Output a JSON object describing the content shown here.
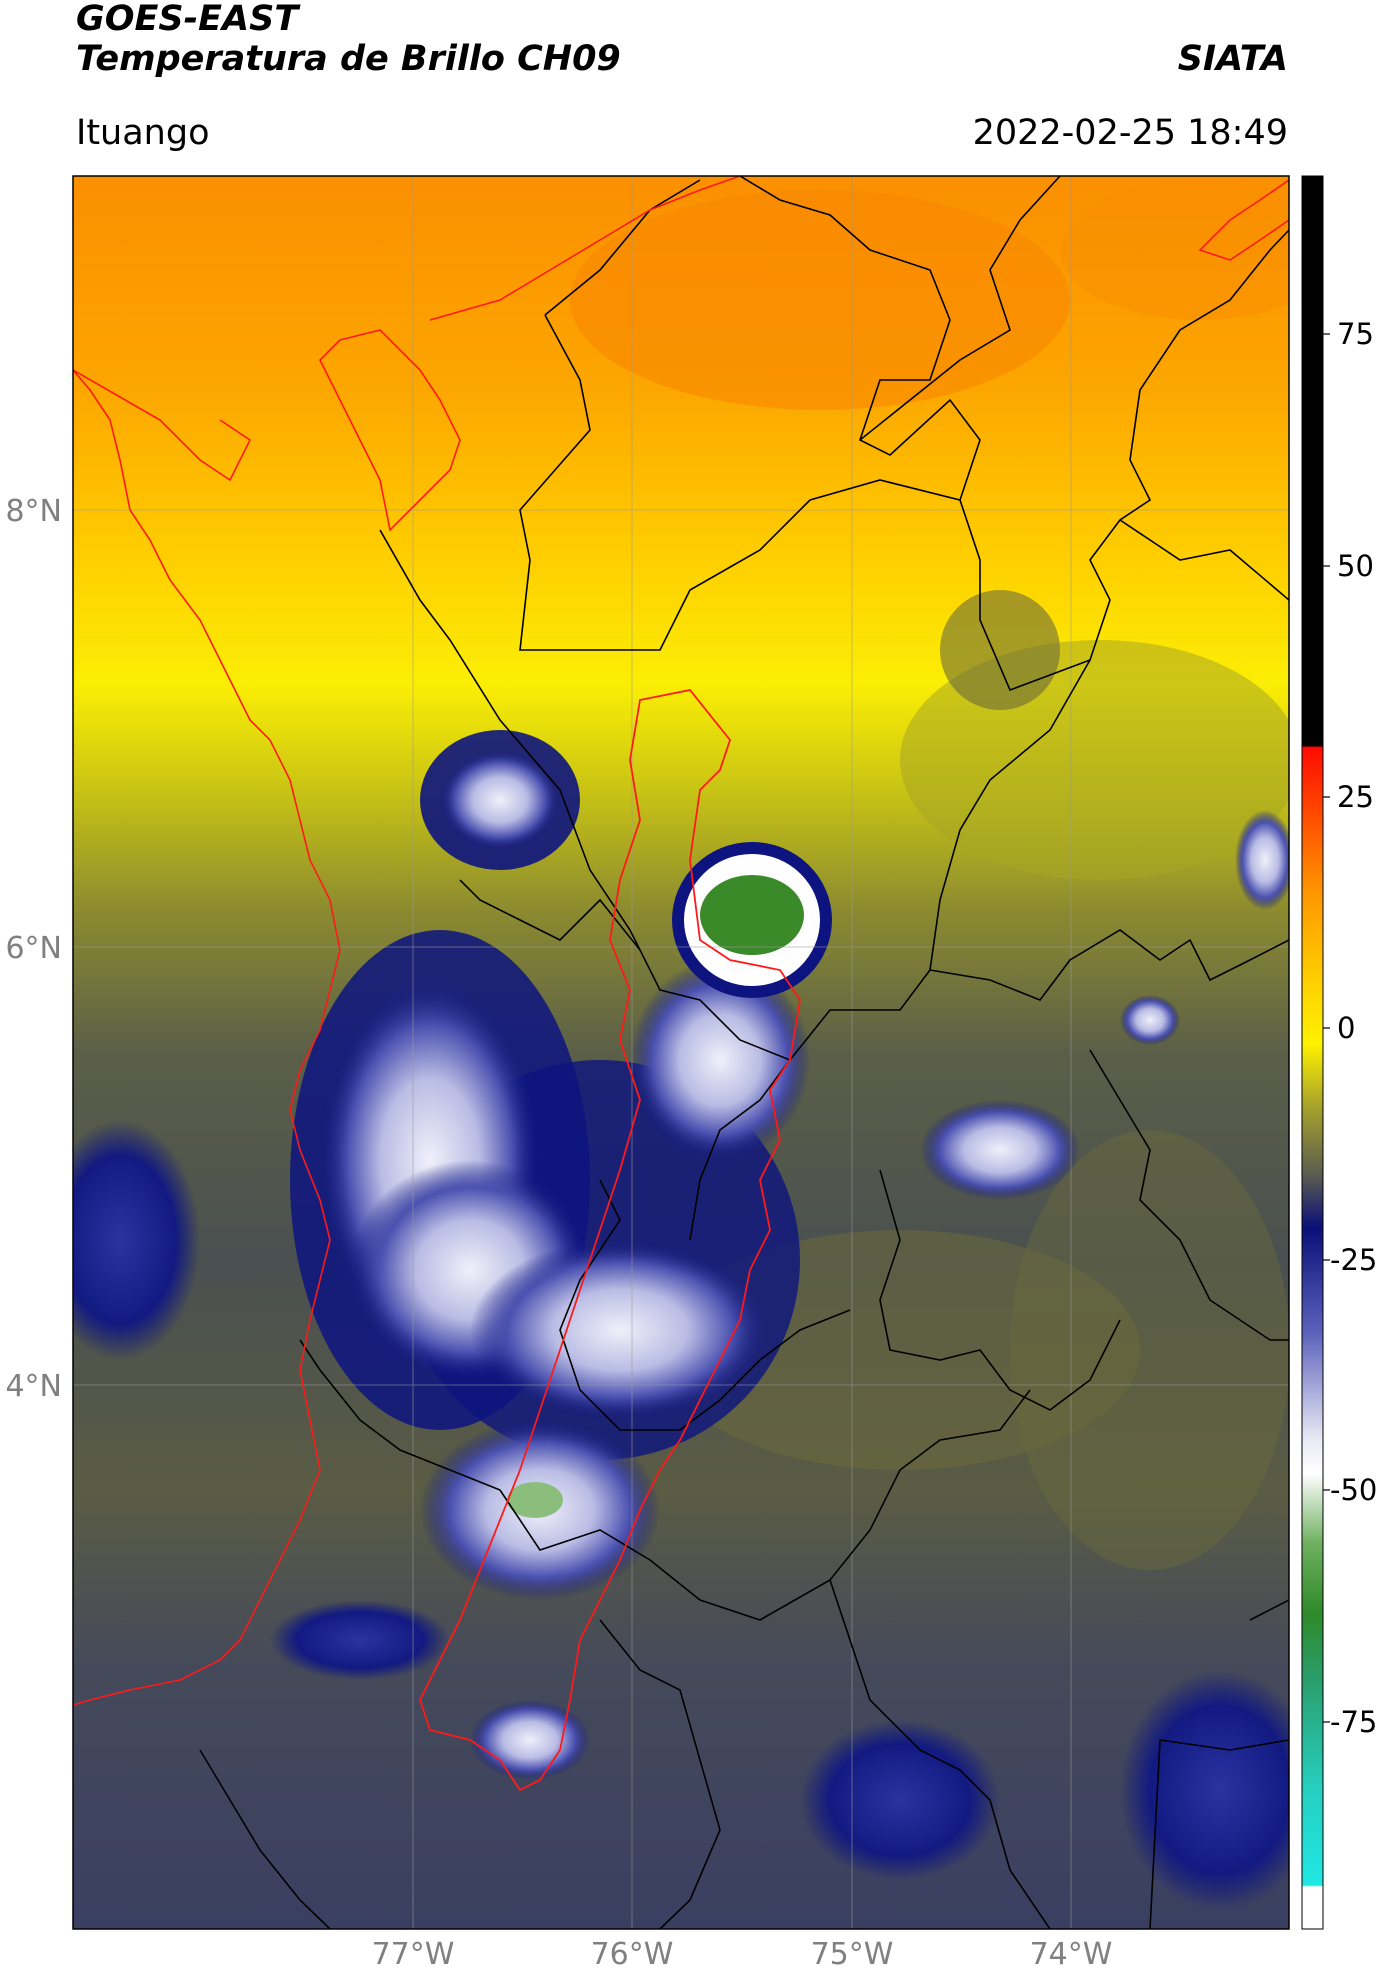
{
  "header": {
    "satellite": "GOES-EAST",
    "product": "Temperatura de Brillo CH09",
    "source": "SIATA",
    "location": "Ituango",
    "datetime": "2022-02-25 18:49"
  },
  "map": {
    "lat_labels": [
      "8°N",
      "6°N",
      "4°N"
    ],
    "lon_labels": [
      "77°W",
      "76°W",
      "75°W",
      "74°W"
    ]
  },
  "colorbar": {
    "ticks": [
      "75",
      "50",
      "25",
      "0",
      "-25",
      "-50",
      "-75"
    ],
    "colors": {
      "black": "#000000",
      "red": "#e8190c",
      "orange": "#ff8c00",
      "yellow": "#ffe600",
      "olive": "#7f7a2a",
      "slate": "#3d4052",
      "navy": "#0b127a",
      "lavender": "#8c8fd0",
      "white": "#ffffff",
      "green": "#3a8a2a",
      "cyan": "#25e3e0"
    }
  }
}
